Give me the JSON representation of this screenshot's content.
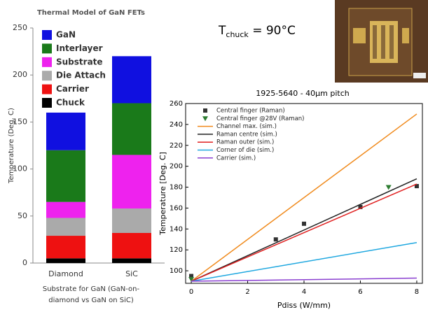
{
  "annotation": {
    "text": "T",
    "subscript": "chuck",
    "rest": " = 90°C"
  },
  "chart_data": [
    {
      "type": "bar",
      "stacked": true,
      "title": "Thermal Model of GaN FETs",
      "ylabel": "Temperature (Deg. C)",
      "xlabel": [
        "Substrate for GaN (GaN-on-",
        "diamond vs GaN on SiC)"
      ],
      "categories": [
        "Diamond",
        "SiC"
      ],
      "series": [
        {
          "name": "Chuck",
          "color": "#000000",
          "values": [
            5,
            5
          ]
        },
        {
          "name": "Carrier",
          "color": "#ee1111",
          "values": [
            24,
            27
          ]
        },
        {
          "name": "Die Attach",
          "color": "#aaaaaa",
          "values": [
            19,
            26
          ]
        },
        {
          "name": "Substrate",
          "color": "#ee22ee",
          "values": [
            17,
            57
          ]
        },
        {
          "name": "Interlayer",
          "color": "#1a7a1a",
          "values": [
            55,
            55
          ]
        },
        {
          "name": "GaN",
          "color": "#1010e0",
          "values": [
            40,
            50
          ]
        }
      ],
      "ylim": [
        0,
        250
      ],
      "yticks": [
        0,
        50,
        100,
        150,
        200,
        250
      ],
      "legend": "upper left",
      "grid": false
    },
    {
      "type": "line",
      "title": "1925-5640 - 40μm pitch",
      "xlabel": "Pdiss (W/mm)",
      "ylabel": "Temperature [Deg. C]",
      "series": [
        {
          "name": "Central finger (Raman)",
          "color": "#333333",
          "kind": "marker",
          "marker": "square",
          "x": [
            0,
            3,
            4,
            6,
            8
          ],
          "values": [
            95,
            130,
            145,
            161,
            181
          ]
        },
        {
          "name": "Central finger @28V (Raman)",
          "color": "#2e7d32",
          "kind": "marker",
          "marker": "triangle-down",
          "x": [
            0,
            7
          ],
          "values": [
            92,
            180
          ]
        },
        {
          "name": "Channel max. (sim.)",
          "color": "#f08a1c",
          "kind": "line",
          "x": [
            0,
            8
          ],
          "values": [
            90,
            250
          ]
        },
        {
          "name": "Raman centre (sim.)",
          "color": "#222222",
          "kind": "line",
          "x": [
            0,
            8
          ],
          "values": [
            90,
            188
          ]
        },
        {
          "name": "Raman outer (sim.)",
          "color": "#e02020",
          "kind": "line",
          "x": [
            0,
            8
          ],
          "values": [
            90,
            183
          ]
        },
        {
          "name": "Corner of die (sim.)",
          "color": "#20a8e0",
          "kind": "line",
          "x": [
            0,
            8
          ],
          "values": [
            90,
            127
          ]
        },
        {
          "name": "Carrier (sim.)",
          "color": "#8a3fd0",
          "kind": "line",
          "x": [
            0,
            8
          ],
          "values": [
            90,
            93
          ]
        }
      ],
      "xlim": [
        -0.2,
        8.2
      ],
      "xticks": [
        0,
        2,
        4,
        6,
        8
      ],
      "ylim": [
        88,
        260
      ],
      "yticks": [
        100,
        120,
        140,
        160,
        180,
        200,
        220,
        240,
        260
      ],
      "legend": "upper left",
      "grid": false
    }
  ]
}
